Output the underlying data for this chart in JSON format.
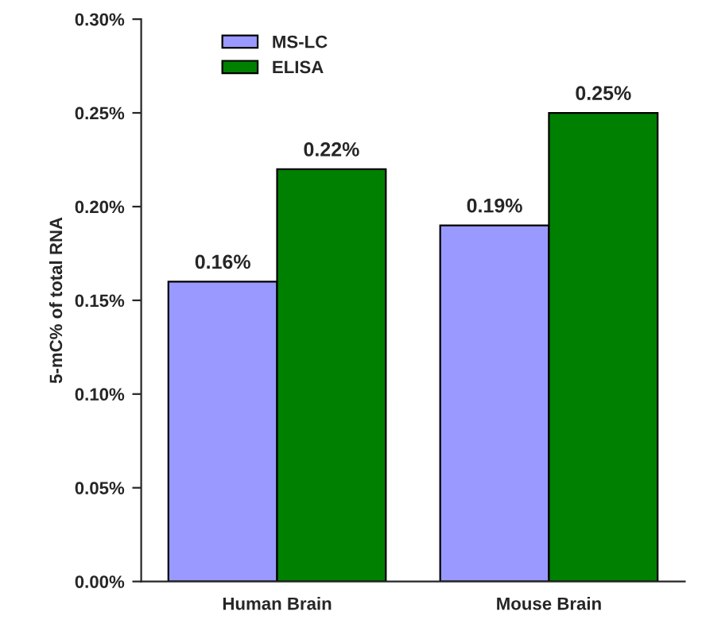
{
  "chart_data": {
    "type": "bar",
    "ylabel": "5-mC% of total RNA",
    "categories": [
      "Human Brain",
      "Mouse Brain"
    ],
    "series": [
      {
        "name": "MS-LC",
        "color": "#9999ff",
        "values": [
          0.16,
          0.19
        ],
        "value_labels": [
          "0.16%",
          "0.19%"
        ]
      },
      {
        "name": "ELISA",
        "color": "#008000",
        "values": [
          0.22,
          0.25
        ],
        "value_labels": [
          "0.22%",
          "0.25%"
        ]
      }
    ],
    "ylim": [
      0,
      0.3
    ],
    "yticks": [
      {
        "value": 0,
        "label": "0.00%"
      },
      {
        "value": 0.05,
        "label": "0.05%"
      },
      {
        "value": 0.1,
        "label": "0.10%"
      },
      {
        "value": 0.15,
        "label": "0.15%"
      },
      {
        "value": 0.2,
        "label": "0.20%"
      },
      {
        "value": 0.25,
        "label": "0.25%"
      },
      {
        "value": 0.3,
        "label": "0.30%"
      }
    ],
    "grid": false,
    "legend": "top left"
  }
}
